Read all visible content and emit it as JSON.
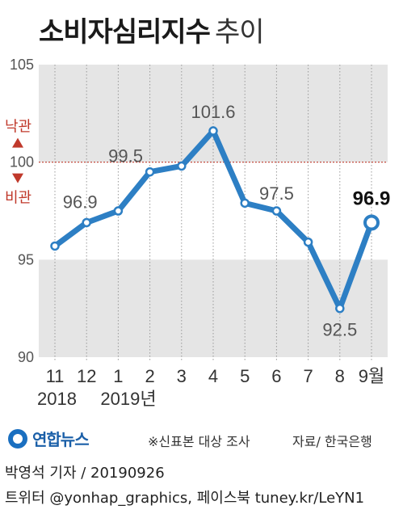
{
  "header": {
    "title": "소비자심리지수",
    "subtitle": "추이"
  },
  "chart_data": {
    "type": "line",
    "title": "소비자심리지수 추이",
    "x": [
      "11",
      "12",
      "1",
      "2",
      "3",
      "4",
      "5",
      "6",
      "7",
      "8",
      "9월"
    ],
    "x_years": [
      {
        "label": "2018",
        "at": "11"
      },
      {
        "label": "2019년",
        "at": "1"
      }
    ],
    "series": [
      {
        "values": [
          95.7,
          96.9,
          97.5,
          99.5,
          99.8,
          101.6,
          97.9,
          97.5,
          95.9,
          92.5,
          96.9
        ]
      }
    ],
    "data_labels": [
      {
        "x": "12",
        "text": "96.9"
      },
      {
        "x": "2",
        "text": "99.5"
      },
      {
        "x": "4",
        "text": "101.6"
      },
      {
        "x": "6",
        "text": "97.5"
      },
      {
        "x": "8",
        "text": "92.5"
      },
      {
        "x": "9월",
        "text": "96.9"
      }
    ],
    "yticks": [
      "90",
      "95",
      "100",
      "105"
    ],
    "ylim": [
      90,
      105
    ],
    "reference_line": 100,
    "reference_labels": {
      "above": "낙관",
      "below": "비관"
    },
    "colors": {
      "line": "#2d7fc4",
      "band": "#e5e5e5",
      "reference": "#c0392b"
    }
  },
  "footer": {
    "logo": "연합뉴스",
    "note": "※신표본 대상 조사",
    "source": "자료/ 한국은행",
    "credit_line1": "박영석 기자 /  20190926",
    "credit_line2": "트위터 @yonhap_graphics, 페이스북 tuney.kr/LeYN1"
  }
}
